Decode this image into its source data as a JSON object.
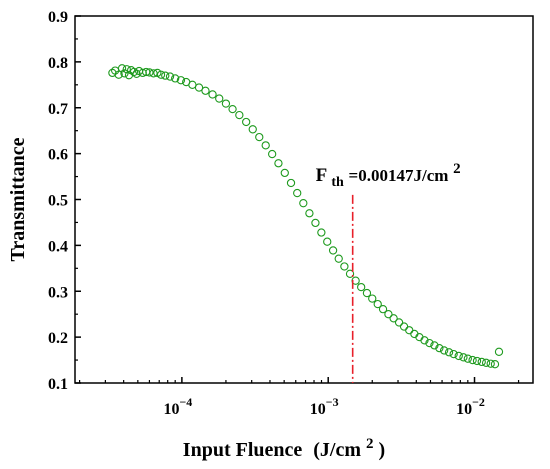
{
  "chart_data": {
    "type": "scatter",
    "xlabel": "Input Fluence",
    "xlabel_unit_prefix": "(J/cm",
    "xlabel_unit_exp": "2",
    "xlabel_unit_suffix": ")",
    "ylabel": "Transmittance",
    "x_scale": "log",
    "xlim": [
      1.86e-05,
      0.0251
    ],
    "ylim": [
      0.1,
      0.9
    ],
    "x_ticks": [
      {
        "value": 0.0001,
        "base": "10",
        "exp": "−4"
      },
      {
        "value": 0.001,
        "base": "10",
        "exp": "−3"
      },
      {
        "value": 0.01,
        "base": "10",
        "exp": "−2"
      }
    ],
    "y_ticks": [
      "0.1",
      "0.2",
      "0.3",
      "0.4",
      "0.5",
      "0.6",
      "0.7",
      "0.8",
      "0.9"
    ],
    "grid": false,
    "marker": "open-circle",
    "series_color": "#1e9a1e",
    "threshold_color": "#e8202a",
    "threshold_line_style": "dash-dot",
    "series": [
      {
        "x": [
          3.35e-05,
          3.5e-05,
          3.7e-05,
          3.9e-05,
          4.05e-05,
          4.2e-05,
          4.35e-05,
          4.5e-05,
          4.7e-05,
          4.9e-05,
          5.1e-05,
          5.4e-05,
          5.7e-05,
          6e-05,
          6.4e-05,
          6.8e-05,
          7.2e-05,
          7.7e-05,
          8.3e-05,
          9e-05,
          9.85e-05,
          0.000107,
          0.000118,
          0.000131,
          0.000145,
          0.000162,
          0.00018,
          0.0002,
          0.000222,
          0.000247,
          0.000275,
          0.000305,
          0.000338,
          0.000374,
          0.000414,
          0.000457,
          0.000505,
          0.000557,
          0.000614,
          0.000676,
          0.000744,
          0.000818,
          0.000898,
          0.000985,
          0.00108,
          0.00118,
          0.00129,
          0.00141,
          0.00154,
          0.00168,
          0.00184,
          0.002,
          0.00218,
          0.00237,
          0.00258,
          0.0028,
          0.00305,
          0.0033,
          0.00358,
          0.00388,
          0.0042,
          0.00455,
          0.00492,
          0.00532,
          0.00575,
          0.0062,
          0.0067,
          0.0072,
          0.0078,
          0.0084,
          0.009,
          0.0097,
          0.0104,
          0.0112,
          0.012,
          0.0129,
          0.0138,
          0.0147
        ],
        "y": [
          0.776,
          0.781,
          0.772,
          0.786,
          0.775,
          0.784,
          0.771,
          0.782,
          0.778,
          0.774,
          0.78,
          0.776,
          0.778,
          0.777,
          0.775,
          0.776,
          0.772,
          0.77,
          0.768,
          0.764,
          0.76,
          0.756,
          0.75,
          0.744,
          0.737,
          0.729,
          0.72,
          0.709,
          0.697,
          0.684,
          0.669,
          0.653,
          0.636,
          0.618,
          0.599,
          0.579,
          0.558,
          0.536,
          0.514,
          0.492,
          0.47,
          0.449,
          0.428,
          0.408,
          0.389,
          0.371,
          0.354,
          0.338,
          0.323,
          0.309,
          0.296,
          0.284,
          0.272,
          0.261,
          0.25,
          0.241,
          0.232,
          0.223,
          0.215,
          0.207,
          0.2,
          0.193,
          0.187,
          0.182,
          0.176,
          0.171,
          0.167,
          0.163,
          0.159,
          0.156,
          0.153,
          0.15,
          0.148,
          0.146,
          0.144,
          0.142,
          0.141,
          0.168
        ]
      }
    ],
    "annotation": {
      "prefix": "F",
      "subscript": "th",
      "value": "=0.00147J/cm",
      "superscript": "2",
      "x": 0.00147,
      "line_y_top": 0.51,
      "line_y_bottom": 0.1
    }
  }
}
